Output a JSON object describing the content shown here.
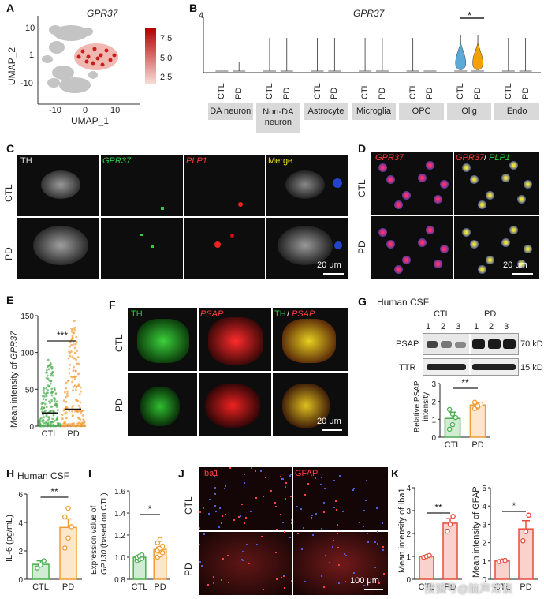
{
  "panels": {
    "A": {
      "letter": "A",
      "gene": "GPR37",
      "xlabel": "UMAP_1",
      "ylabel": "UMAP_2",
      "xticks": [
        "-10",
        "0",
        "10"
      ],
      "yticks": [
        "10",
        "1",
        "-10"
      ],
      "colorbar": {
        "ticks": [
          "7.5",
          "5.0",
          "2.5"
        ],
        "low": "#f5d5cf",
        "high": "#b30000"
      }
    },
    "B": {
      "letter": "B",
      "gene": "GPR37",
      "ymax": "4",
      "star": "*",
      "groups": [
        "CTL",
        "PD"
      ],
      "celltypes": [
        "DA neuron",
        "Non-DA\nneuron",
        "Astrocyte",
        "Microglia",
        "OPC",
        "Olig",
        "Endo"
      ],
      "colors": {
        "CTL": "#5aa9d6",
        "PD": "#f4a000"
      }
    },
    "C": {
      "letter": "C",
      "channels": [
        "TH",
        "GPR37",
        "PLP1",
        "Merge"
      ],
      "rows": [
        "CTL",
        "PD"
      ],
      "scale": "20 μm"
    },
    "D": {
      "letter": "D",
      "channel1": "GPR37",
      "channel2a": "GPR37",
      "channel2b": "/",
      "channel2c": "PLP1",
      "rows": [
        "CTL",
        "PD"
      ],
      "scale": "20 μm"
    },
    "E": {
      "letter": "E",
      "ylabel_a": "Mean intensity of ",
      "ylabel_gene": "GPR37",
      "sig": "***",
      "yticks": [
        "150",
        "100",
        "50",
        "0"
      ],
      "xlabels": [
        "CTL",
        "PD"
      ]
    },
    "F": {
      "letter": "F",
      "ch1": "TH",
      "ch2": "PSAP",
      "ch3a": "TH",
      "ch3b": "/",
      "ch3c": "PSAP",
      "rows": [
        "CTL",
        "PD"
      ],
      "scale": "20 μm"
    },
    "G": {
      "letter": "G",
      "title": "Human CSF",
      "groups": [
        "CTL",
        "PD"
      ],
      "lanes": [
        "1",
        "2",
        "3",
        "1",
        "2",
        "3"
      ],
      "bands": [
        "PSAP",
        "TTR"
      ],
      "kd": [
        "70 kD",
        "15 kD"
      ],
      "sig": "**",
      "ylabel": "Relative PSAP\nintensity",
      "yticks": [
        "3",
        "2",
        "1",
        "0"
      ],
      "xlabels": [
        "CTL",
        "PD"
      ]
    },
    "H": {
      "letter": "H",
      "title": "Human CSF",
      "ylabel": "IL-6 (pg/mL)",
      "sig": "**",
      "yticks": [
        "6",
        "4",
        "2",
        "0"
      ],
      "xlabels": [
        "CTL",
        "PD"
      ]
    },
    "I": {
      "letter": "I",
      "ylabel_a": "Expression value of",
      "ylabel_b": "GP130",
      "ylabel_c": " (based on CTL)",
      "sig": "*",
      "yticks": [
        "1.6",
        "1.4",
        "1.2",
        "1.0",
        "0.8"
      ],
      "xlabels": [
        "CTL",
        "PD"
      ]
    },
    "J": {
      "letter": "J",
      "ch1": "Iba1",
      "ch2": "GFAP",
      "rows": [
        "CTL",
        "PD"
      ],
      "scale": "100 μm"
    },
    "K": {
      "letter": "K",
      "ylabel1": "Mean intensity of Iba1",
      "ylabel2": "Mean intensity of GFAP",
      "sig1": "**",
      "sig2": "*",
      "yticks1": [
        "4",
        "3",
        "2",
        "1",
        "0"
      ],
      "yticks2": [
        "5",
        "4",
        "3",
        "2",
        "1",
        "0"
      ],
      "xlabels": [
        "CTL",
        "PD"
      ]
    },
    "watermark": "搜狐号@脑声常谈"
  },
  "chart_data": [
    {
      "id": "E",
      "type": "bar",
      "categories": [
        "CTL",
        "PD"
      ],
      "values": [
        18,
        23
      ],
      "ylim": [
        0,
        150
      ],
      "colors": [
        "#4caf50",
        "#f39c34"
      ]
    },
    {
      "id": "G",
      "type": "bar",
      "categories": [
        "CTL",
        "PD"
      ],
      "values": [
        1.05,
        1.8
      ],
      "errors": [
        0.35,
        0.15
      ],
      "points": [
        [
          0.45,
          0.7,
          1.1,
          1.55,
          1.3
        ],
        [
          1.6,
          1.7,
          1.85,
          1.95,
          1.75
        ]
      ],
      "ylim": [
        0,
        3
      ],
      "colors": [
        "#4caf50",
        "#f39c34"
      ]
    },
    {
      "id": "H",
      "type": "bar",
      "categories": [
        "CTL",
        "PD"
      ],
      "values": [
        1.05,
        3.65
      ],
      "errors": [
        0.25,
        0.6
      ],
      "points": [
        [
          0.8,
          1.0,
          1.3
        ],
        [
          2.2,
          2.9,
          3.7,
          4.4,
          5.0
        ]
      ],
      "ylim": [
        0,
        6
      ],
      "colors": [
        "#4caf50",
        "#f39c34"
      ]
    },
    {
      "id": "I",
      "type": "bar",
      "categories": [
        "CTL",
        "PD"
      ],
      "values": [
        1.0,
        1.07
      ],
      "errors": [
        0.01,
        0.02
      ],
      "points": [
        [
          0.97,
          0.98,
          0.99,
          1.0,
          1.01,
          1.02
        ],
        [
          1.0,
          1.02,
          1.04,
          1.06,
          1.08,
          1.1,
          1.13,
          1.16
        ]
      ],
      "ylim": [
        0.8,
        1.6
      ],
      "colors": [
        "#4caf50",
        "#f39c34"
      ]
    },
    {
      "id": "K1",
      "type": "bar",
      "categories": [
        "CTL",
        "PD"
      ],
      "values": [
        1.0,
        2.45
      ],
      "errors": [
        0.04,
        0.2
      ],
      "points": [
        [
          0.96,
          1.0,
          1.04
        ],
        [
          2.1,
          2.4,
          2.75
        ]
      ],
      "ylim": [
        0,
        4
      ],
      "colors": [
        "#e74c3c",
        "#e74c3c"
      ]
    },
    {
      "id": "K2",
      "type": "bar",
      "categories": [
        "CTL",
        "PD"
      ],
      "values": [
        1.0,
        2.75
      ],
      "errors": [
        0.03,
        0.45
      ],
      "points": [
        [
          0.97,
          1.0,
          1.03
        ],
        [
          2.1,
          2.6,
          3.5
        ]
      ],
      "ylim": [
        0,
        5
      ],
      "colors": [
        "#e74c3c",
        "#e74c3c"
      ]
    }
  ]
}
